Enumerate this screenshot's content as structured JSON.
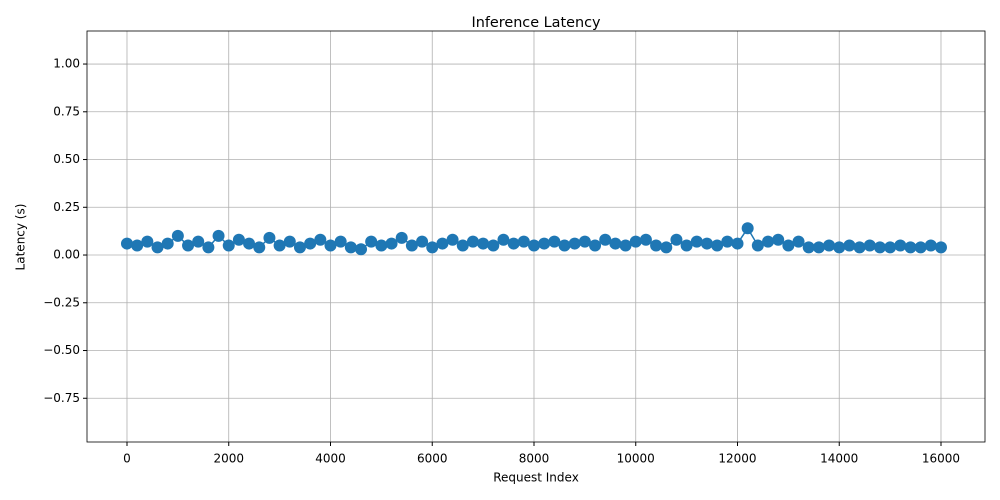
{
  "chart_data": {
    "type": "line",
    "title": "Inference Latency",
    "x_label": "Request Index",
    "y_label": "Latency (s)",
    "color": "#1f77b4",
    "grid": true,
    "markers": true,
    "xlim": [
      -786,
      16865
    ],
    "ylim": [
      -0.979,
      1.173
    ],
    "xticks": [
      0,
      2000,
      4000,
      6000,
      8000,
      10000,
      12000,
      14000,
      16000
    ],
    "yticks": [
      {
        "value": -0.75,
        "label": "−0.75"
      },
      {
        "value": -0.5,
        "label": "−0.50"
      },
      {
        "value": -0.25,
        "label": "−0.25"
      },
      {
        "value": 0,
        "label": "0.00"
      },
      {
        "value": 0.25,
        "label": "0.25"
      },
      {
        "value": 0.5,
        "label": "0.50"
      },
      {
        "value": 0.75,
        "label": "0.75"
      },
      {
        "value": 1,
        "label": "1.00"
      }
    ],
    "x": [
      0,
      200,
      400,
      600,
      800,
      1000,
      1200,
      1400,
      1600,
      1800,
      2000,
      2200,
      2400,
      2600,
      2800,
      3000,
      3200,
      3400,
      3600,
      3800,
      4000,
      4200,
      4400,
      4600,
      4800,
      5000,
      5200,
      5400,
      5600,
      5800,
      6000,
      6200,
      6400,
      6600,
      6800,
      7000,
      7200,
      7400,
      7600,
      7800,
      8000,
      8200,
      8400,
      8600,
      8800,
      9000,
      9200,
      9400,
      9600,
      9800,
      10000,
      10200,
      10400,
      10600,
      10800,
      11000,
      11200,
      11400,
      11600,
      11800,
      12000,
      12200,
      12400,
      12600,
      12800,
      13000,
      13200,
      13400,
      13600,
      13800,
      14000,
      14200,
      14400,
      14600,
      14800,
      15000,
      15200,
      15400,
      15600,
      15800,
      16000
    ],
    "values": [
      0.06,
      0.05,
      0.07,
      0.04,
      0.06,
      0.1,
      0.05,
      0.07,
      0.04,
      0.1,
      0.05,
      0.08,
      0.06,
      0.04,
      0.09,
      0.05,
      0.07,
      0.04,
      0.06,
      0.08,
      0.05,
      0.07,
      0.04,
      0.03,
      0.07,
      0.05,
      0.06,
      0.09,
      0.05,
      0.07,
      0.04,
      0.06,
      0.08,
      0.05,
      0.07,
      0.06,
      0.05,
      0.08,
      0.06,
      0.07,
      0.05,
      0.06,
      0.07,
      0.05,
      0.06,
      0.07,
      0.05,
      0.08,
      0.06,
      0.05,
      0.07,
      0.08,
      0.05,
      0.04,
      0.08,
      0.05,
      0.07,
      0.06,
      0.05,
      0.07,
      0.06,
      0.14,
      0.05,
      0.07,
      0.08,
      0.05,
      0.07,
      0.04,
      0.04,
      0.05,
      0.04,
      0.05,
      0.04,
      0.05,
      0.04,
      0.04,
      0.05,
      0.04,
      0.04,
      0.05,
      0.04
    ]
  }
}
